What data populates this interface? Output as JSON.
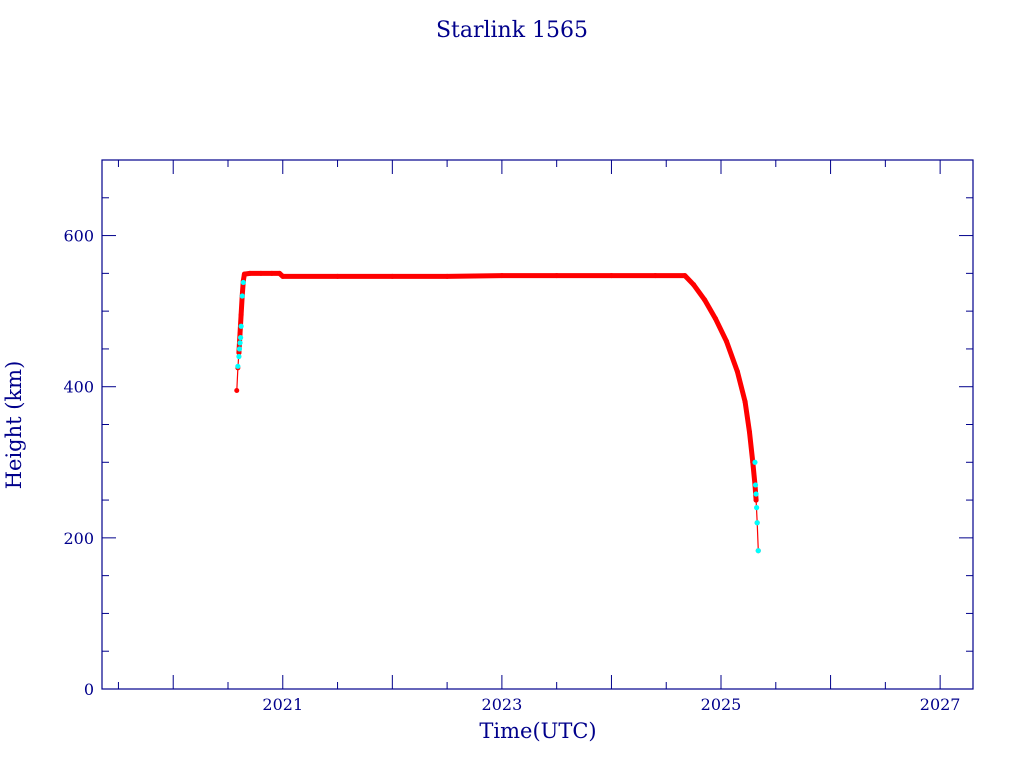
{
  "colors": {
    "axis": "#00008b",
    "text": "#00008b",
    "series_main": "#ff0000",
    "series_marker": "#00ffff"
  },
  "chart_data": {
    "type": "line",
    "title": "Starlink 1565",
    "xlabel": "Time(UTC)",
    "ylabel": "Height (km)",
    "x_scale": "date-year",
    "xlim": [
      2019.35,
      2027.3
    ],
    "ylim": [
      0,
      700
    ],
    "x_ticks": [
      {
        "value": 2021,
        "label": "2021"
      },
      {
        "value": 2023,
        "label": "2023"
      },
      {
        "value": 2025,
        "label": "2025"
      },
      {
        "value": 2027,
        "label": "2027"
      }
    ],
    "x_minor_step": 0.5,
    "y_ticks": [
      {
        "value": 0,
        "label": "0"
      },
      {
        "value": 200,
        "label": "200"
      },
      {
        "value": 400,
        "label": "400"
      },
      {
        "value": 600,
        "label": "600"
      }
    ],
    "y_minor_step": 50,
    "grid": false,
    "legend": "none",
    "series": [
      {
        "x": [
          2020.58,
          2020.59,
          2020.6,
          2020.61,
          2020.62,
          2020.63,
          2020.64,
          2020.65,
          2020.7,
          2020.8,
          2020.9,
          2020.97,
          2021.0,
          2021.5,
          2022.0,
          2022.5,
          2023.0,
          2023.5,
          2024.0,
          2024.4,
          2024.67,
          2024.75,
          2024.85,
          2024.95,
          2025.05,
          2025.15,
          2025.22,
          2025.26,
          2025.29,
          2025.31,
          2025.32,
          2025.33,
          2025.34
        ],
        "y": [
          395,
          425,
          445,
          470,
          495,
          520,
          540,
          549,
          550,
          550,
          550,
          550,
          546,
          546,
          546,
          546,
          547,
          547,
          547,
          547,
          547,
          535,
          515,
          490,
          460,
          420,
          380,
          340,
          300,
          270,
          250,
          220,
          183
        ]
      },
      {
        "x": [
          2020.59,
          2020.6,
          2020.605,
          2020.61,
          2020.615,
          2020.62,
          2020.63,
          2020.64,
          2025.31,
          2025.315,
          2025.32,
          2025.325,
          2025.33,
          2025.34
        ],
        "y": [
          427,
          440,
          450,
          458,
          465,
          480,
          520,
          538,
          300,
          270,
          258,
          240,
          220,
          183
        ]
      }
    ]
  }
}
